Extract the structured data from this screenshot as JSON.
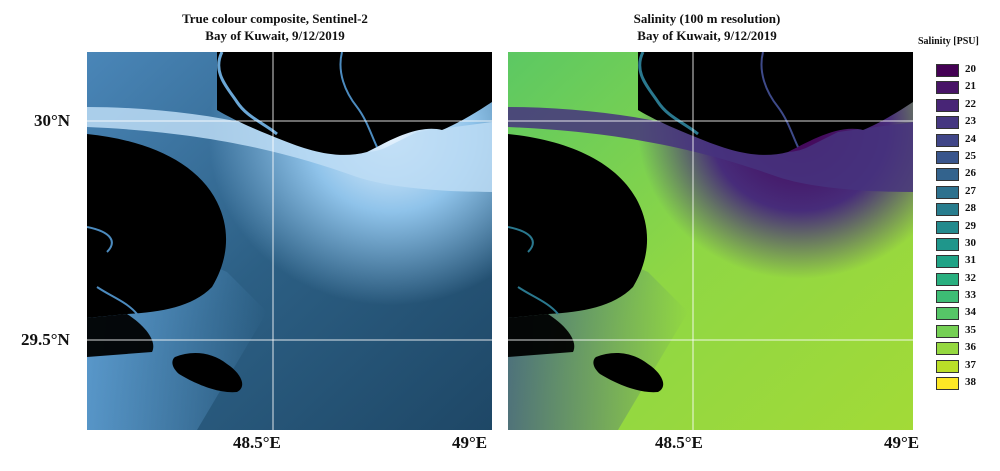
{
  "left_panel": {
    "title_line1": "True colour composite, Sentinel-2",
    "title_line2": "Bay of Kuwait, 9/12/2019"
  },
  "right_panel": {
    "title_line1": "Salinity (100 m resolution)",
    "title_line2": "Bay of Kuwait, 9/12/2019"
  },
  "axes": {
    "lat_labels": [
      "30°N",
      "29.5°N"
    ],
    "lon_labels": [
      "48.5°E",
      "49°E"
    ]
  },
  "legend": {
    "title": "Salinity [PSU]",
    "items": [
      {
        "label": "20",
        "color": "#440154"
      },
      {
        "label": "21",
        "color": "#481467"
      },
      {
        "label": "22",
        "color": "#482576"
      },
      {
        "label": "23",
        "color": "#453781"
      },
      {
        "label": "24",
        "color": "#404688"
      },
      {
        "label": "25",
        "color": "#39558c"
      },
      {
        "label": "26",
        "color": "#33638d"
      },
      {
        "label": "27",
        "color": "#2d718e"
      },
      {
        "label": "28",
        "color": "#287d8e"
      },
      {
        "label": "29",
        "color": "#238a8d"
      },
      {
        "label": "30",
        "color": "#1f968b"
      },
      {
        "label": "31",
        "color": "#20a386"
      },
      {
        "label": "32",
        "color": "#29af7f"
      },
      {
        "label": "33",
        "color": "#3dbc74"
      },
      {
        "label": "34",
        "color": "#56c667"
      },
      {
        "label": "35",
        "color": "#75d054"
      },
      {
        "label": "36",
        "color": "#95d840"
      },
      {
        "label": "37",
        "color": "#bade28"
      },
      {
        "label": "38",
        "color": "#fde725"
      }
    ]
  }
}
